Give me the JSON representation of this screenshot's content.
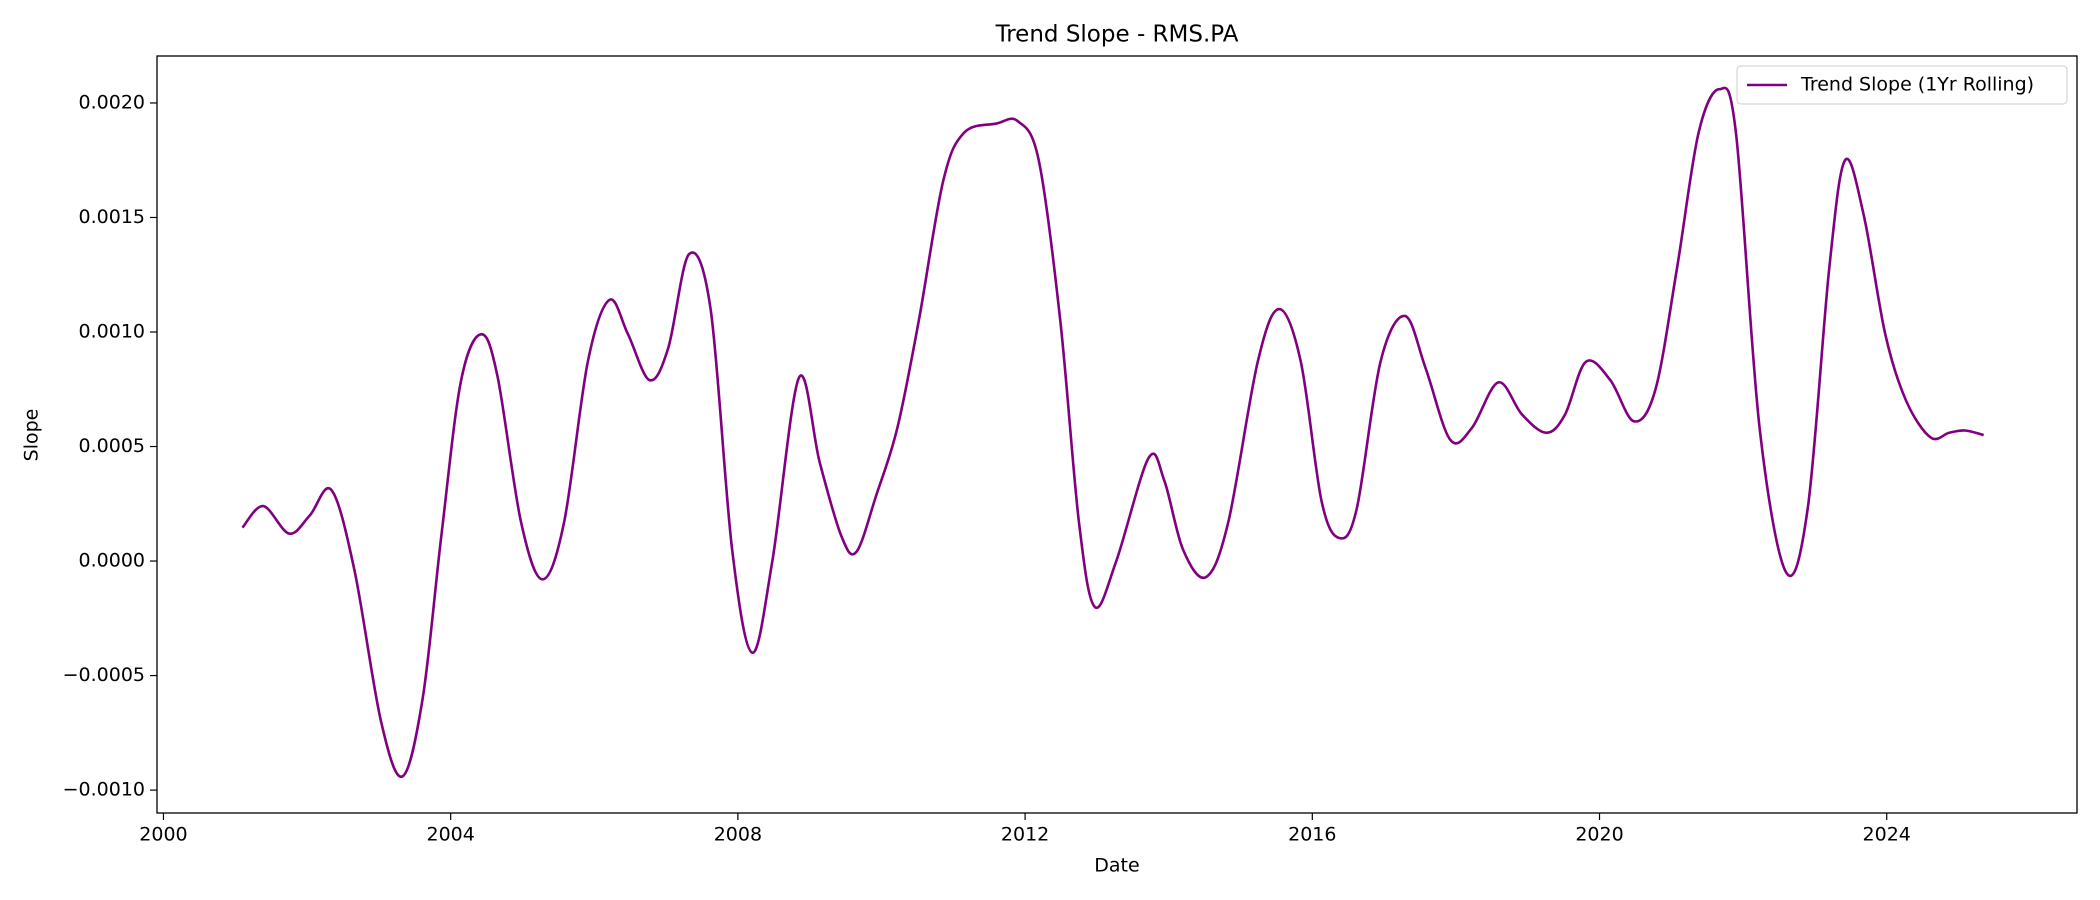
{
  "chart_data": {
    "type": "line",
    "title": "Trend Slope - RMS.PA",
    "xlabel": "Date",
    "ylabel": "Slope",
    "legend": "upper right",
    "grid": false,
    "xlim": [
      1999.91,
      2026.65
    ],
    "xticks": [
      2000,
      2004,
      2008,
      2012,
      2016,
      2020,
      2024
    ],
    "ylim": [
      -0.0011,
      0.002205
    ],
    "yticks": [
      {
        "value": -0.001,
        "label": "−0.0010"
      },
      {
        "value": -0.0005,
        "label": "−0.0005"
      },
      {
        "value": 0,
        "label": "0.0000"
      },
      {
        "value": 0.0005,
        "label": "0.0005"
      },
      {
        "value": 0.001,
        "label": "0.0010"
      },
      {
        "value": 0.0015,
        "label": "0.0015"
      },
      {
        "value": 0.002,
        "label": "0.0020"
      }
    ],
    "series": [
      {
        "name": "Trend Slope (1Yr Rolling)",
        "color": "#800080",
        "x": [
          2001.1,
          2001.39,
          2001.75,
          2002.04,
          2002.34,
          2002.66,
          2003.03,
          2003.33,
          2003.61,
          2003.87,
          2004.14,
          2004.42,
          2004.65,
          2004.98,
          2005.28,
          2005.58,
          2005.91,
          2006.21,
          2006.47,
          2006.77,
          2007.03,
          2007.32,
          2007.62,
          2007.92,
          2008.2,
          2008.48,
          2008.85,
          2009.14,
          2009.44,
          2009.65,
          2009.93,
          2010.22,
          2010.52,
          2010.86,
          2011.15,
          2011.6,
          2011.9,
          2012.19,
          2012.49,
          2012.75,
          2012.97,
          2013.27,
          2013.72,
          2013.94,
          2014.2,
          2014.52,
          2014.83,
          2015.24,
          2015.54,
          2015.84,
          2016.13,
          2016.38,
          2016.62,
          2016.95,
          2017.29,
          2017.58,
          2017.92,
          2018.22,
          2018.59,
          2018.92,
          2019.26,
          2019.52,
          2019.81,
          2020.15,
          2020.48,
          2020.78,
          2021.08,
          2021.38,
          2021.67,
          2021.9,
          2022.23,
          2022.6,
          2022.9,
          2023.2,
          2023.42,
          2023.68,
          2023.98,
          2024.27,
          2024.61,
          2024.87,
          2025.09,
          2025.35
        ],
        "values": [
          0.000146,
          0.00024,
          0.00012,
          0.0002,
          0.00031,
          -4e-05,
          -0.0007,
          -0.00094,
          -0.0006,
          0.00011,
          0.00078,
          0.00099,
          0.00081,
          0.00017,
          -8e-05,
          0.00017,
          0.00087,
          0.00114,
          0.00099,
          0.00079,
          0.00093,
          0.00134,
          0.0011,
          5e-05,
          -0.0004,
          0,
          0.0008,
          0.00043,
          0.00011,
          4e-05,
          0.00029,
          0.00058,
          0.00105,
          0.00166,
          0.00187,
          0.00191,
          0.00192,
          0.00175,
          0.00105,
          0.00017,
          -0.0002,
          0,
          0.00045,
          0.00035,
          5e-05,
          -7e-05,
          0.00017,
          0.00087,
          0.0011,
          0.00087,
          0.00026,
          0.0001,
          0.00023,
          0.00087,
          0.00107,
          0.00084,
          0.00053,
          0.00058,
          0.00078,
          0.00064,
          0.00056,
          0.00064,
          0.00087,
          0.00079,
          0.00061,
          0.00075,
          0.00128,
          0.00187,
          0.00206,
          0.00187,
          0.00058,
          -5e-05,
          0.00023,
          0.00128,
          0.00175,
          0.00151,
          0.00099,
          0.0007,
          0.00054,
          0.00056,
          0.00057,
          0.00055
        ]
      }
    ]
  }
}
